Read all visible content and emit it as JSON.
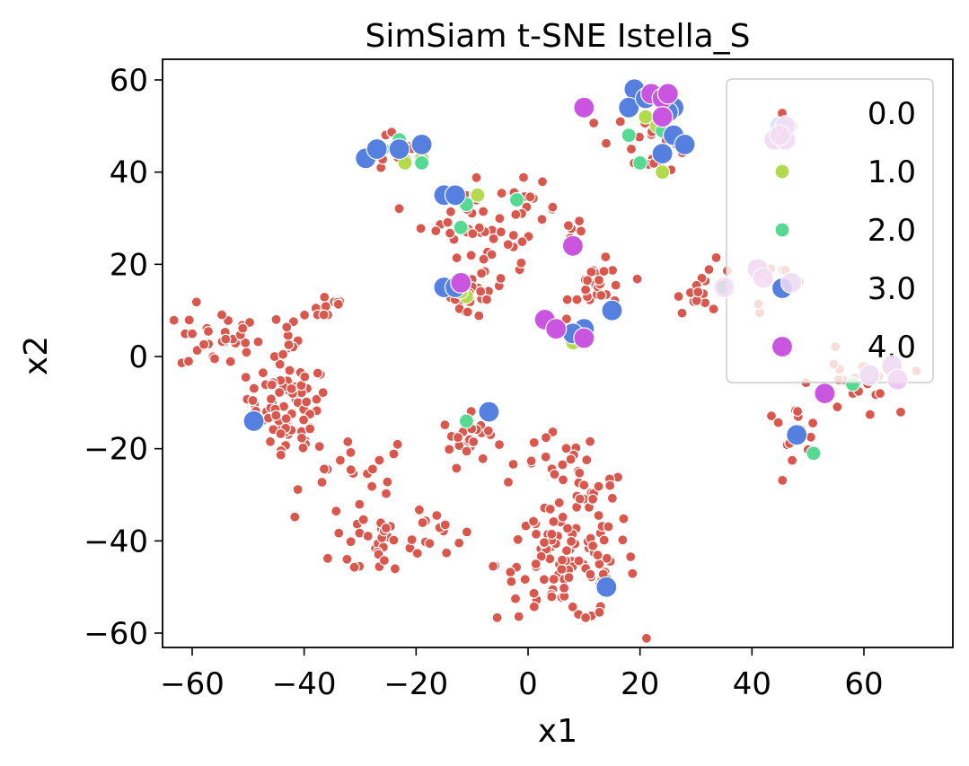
{
  "chart_data": {
    "type": "scatter",
    "title": "SimSiam t-SNE Istella_S",
    "xlabel": "x1",
    "ylabel": "x2",
    "xlim": [
      -65,
      74
    ],
    "ylim": [
      -63,
      64
    ],
    "xticks": [
      -60,
      -40,
      -20,
      0,
      20,
      40,
      60
    ],
    "yticks": [
      -60,
      -40,
      -20,
      0,
      20,
      40,
      60
    ],
    "legend_position": "upper-right",
    "series": [
      {
        "name": "0.0",
        "color": "#d9574c",
        "marker_size": "small",
        "clusters": [
          {
            "cx": -30,
            "cy": -26,
            "spread": 6,
            "n": 20
          },
          {
            "cx": -43,
            "cy": -9,
            "spread": 4,
            "n": 55
          },
          {
            "cx": -43,
            "cy": -18,
            "spread": 3,
            "n": 20
          },
          {
            "cx": -55,
            "cy": 4,
            "spread": 4,
            "n": 30
          },
          {
            "cx": -44,
            "cy": 5,
            "spread": 3,
            "n": 12
          },
          {
            "cx": -36,
            "cy": 11,
            "spread": 2,
            "n": 10
          },
          {
            "cx": -26,
            "cy": -40,
            "spread": 5,
            "n": 30
          },
          {
            "cx": -17,
            "cy": -37,
            "spread": 3,
            "n": 12
          },
          {
            "cx": -10,
            "cy": -18,
            "spread": 3,
            "n": 25
          },
          {
            "cx": -10,
            "cy": 31,
            "spread": 5,
            "n": 35
          },
          {
            "cx": -6,
            "cy": 18,
            "spread": 3,
            "n": 15
          },
          {
            "cx": -11,
            "cy": 13,
            "spread": 3,
            "n": 15
          },
          {
            "cx": 0,
            "cy": 32,
            "spread": 3,
            "n": 12
          },
          {
            "cx": 7,
            "cy": -45,
            "spread": 7,
            "n": 110
          },
          {
            "cx": 6,
            "cy": -24,
            "spread": 4,
            "n": 20
          },
          {
            "cx": 12,
            "cy": -30,
            "spread": 3,
            "n": 12
          },
          {
            "cx": 13,
            "cy": 15,
            "spread": 3,
            "n": 25
          },
          {
            "cx": 9,
            "cy": 28,
            "spread": 1.5,
            "n": 6
          },
          {
            "cx": 22,
            "cy": 47,
            "spread": 4,
            "n": 20
          },
          {
            "cx": 32,
            "cy": 15,
            "spread": 3,
            "n": 15
          },
          {
            "cx": 45,
            "cy": 15,
            "spread": 3,
            "n": 10
          },
          {
            "cx": 47,
            "cy": -16,
            "spread": 3,
            "n": 15
          },
          {
            "cx": 58,
            "cy": -6,
            "spread": 4,
            "n": 20
          },
          {
            "cx": -24,
            "cy": 44,
            "spread": 3,
            "n": 10
          }
        ]
      },
      {
        "name": "1.0",
        "color": "#b3d94c",
        "marker_size": "medium",
        "points": [
          [
            -22,
            42
          ],
          [
            -19,
            43
          ],
          [
            -9,
            35
          ],
          [
            -11,
            13
          ],
          [
            8,
            3
          ],
          [
            24,
            40
          ],
          [
            21,
            52
          ],
          [
            23,
            50
          ],
          [
            46,
            50
          ],
          [
            -12,
            14
          ]
        ]
      },
      {
        "name": "2.0",
        "color": "#56d991",
        "marker_size": "medium",
        "points": [
          [
            -26,
            45
          ],
          [
            -23,
            47
          ],
          [
            -19,
            42
          ],
          [
            -12,
            28
          ],
          [
            -11,
            33
          ],
          [
            -2,
            34
          ],
          [
            -11,
            -14
          ],
          [
            18,
            48
          ],
          [
            20,
            42
          ],
          [
            24,
            49
          ],
          [
            35,
            15
          ],
          [
            51,
            -21
          ],
          [
            58,
            -6
          ],
          [
            47,
            50
          ]
        ]
      },
      {
        "name": "3.0",
        "color": "#5580e0",
        "marker_size": "large",
        "points": [
          [
            -29,
            43
          ],
          [
            -27,
            45
          ],
          [
            -23,
            45
          ],
          [
            -19,
            46
          ],
          [
            -15,
            35
          ],
          [
            -13,
            35
          ],
          [
            -15,
            15
          ],
          [
            -13,
            15
          ],
          [
            -49,
            -14
          ],
          [
            -7,
            -12
          ],
          [
            10,
            4
          ],
          [
            10,
            6
          ],
          [
            15,
            10
          ],
          [
            8,
            5
          ],
          [
            14,
            -50
          ],
          [
            19,
            58
          ],
          [
            18,
            54
          ],
          [
            21,
            56
          ],
          [
            26,
            54
          ],
          [
            26,
            48
          ],
          [
            28,
            46
          ],
          [
            24,
            44
          ],
          [
            25,
            53
          ],
          [
            48,
            -17
          ],
          [
            45,
            50
          ],
          [
            47,
            16
          ],
          [
            61,
            -4
          ],
          [
            65,
            -2
          ]
        ]
      },
      {
        "name": "4.0",
        "color": "#c955e0",
        "marker_size": "large",
        "points": [
          [
            10,
            54
          ],
          [
            22,
            57
          ],
          [
            24,
            56
          ],
          [
            25,
            57
          ],
          [
            24,
            52
          ],
          [
            8,
            24
          ],
          [
            -12,
            16
          ],
          [
            3,
            8
          ],
          [
            5,
            6
          ],
          [
            10,
            4
          ],
          [
            44,
            47
          ],
          [
            46,
            47
          ],
          [
            41,
            19
          ],
          [
            53,
            -8
          ],
          [
            66,
            -5
          ]
        ]
      }
    ],
    "fade_points": [
      [
        44,
        47
      ],
      [
        46,
        47
      ],
      [
        46,
        50
      ],
      [
        45,
        48
      ],
      [
        41,
        19
      ],
      [
        42,
        17
      ],
      [
        47,
        16
      ],
      [
        35,
        15
      ],
      [
        61,
        -4
      ],
      [
        65,
        -2
      ],
      [
        66,
        -5
      ]
    ]
  }
}
